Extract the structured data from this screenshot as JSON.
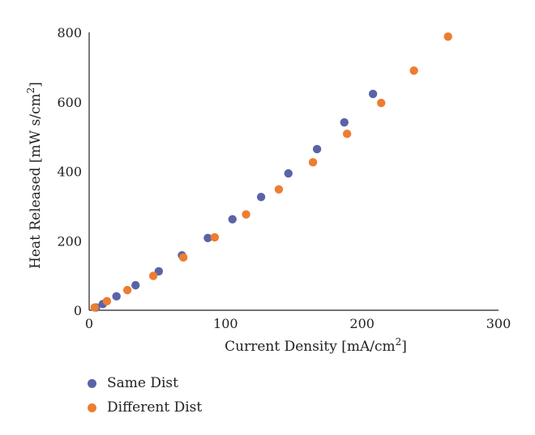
{
  "chart_data": {
    "type": "scatter",
    "xlabel": "Current Density [mA/cm2]",
    "ylabel": "Heat Released [mW s/cm2]",
    "xlim": [
      0,
      300
    ],
    "ylim": [
      0,
      800
    ],
    "xticks": [
      "0",
      "100",
      "200",
      "300"
    ],
    "yticks": [
      "0",
      "200",
      "400",
      "600",
      "800"
    ],
    "grid": false,
    "legend_position": "bottom-left",
    "series": [
      {
        "name": "Same Dist",
        "color": "#5b63a8",
        "points": [
          [
            5,
            8
          ],
          [
            10,
            18
          ],
          [
            20,
            40
          ],
          [
            34,
            72
          ],
          [
            51,
            112
          ],
          [
            68,
            158
          ],
          [
            87,
            208
          ],
          [
            105,
            262
          ],
          [
            126,
            326
          ],
          [
            146,
            394
          ],
          [
            167,
            464
          ],
          [
            187,
            541
          ],
          [
            208,
            623
          ]
        ]
      },
      {
        "name": "Different Dist",
        "color": "#ed7d31",
        "points": [
          [
            4,
            8
          ],
          [
            13,
            26
          ],
          [
            28,
            58
          ],
          [
            47,
            99
          ],
          [
            69,
            152
          ],
          [
            92,
            210
          ],
          [
            115,
            276
          ],
          [
            139,
            348
          ],
          [
            164,
            426
          ],
          [
            189,
            508
          ],
          [
            214,
            597
          ],
          [
            238,
            690
          ],
          [
            263,
            788
          ]
        ]
      }
    ]
  }
}
